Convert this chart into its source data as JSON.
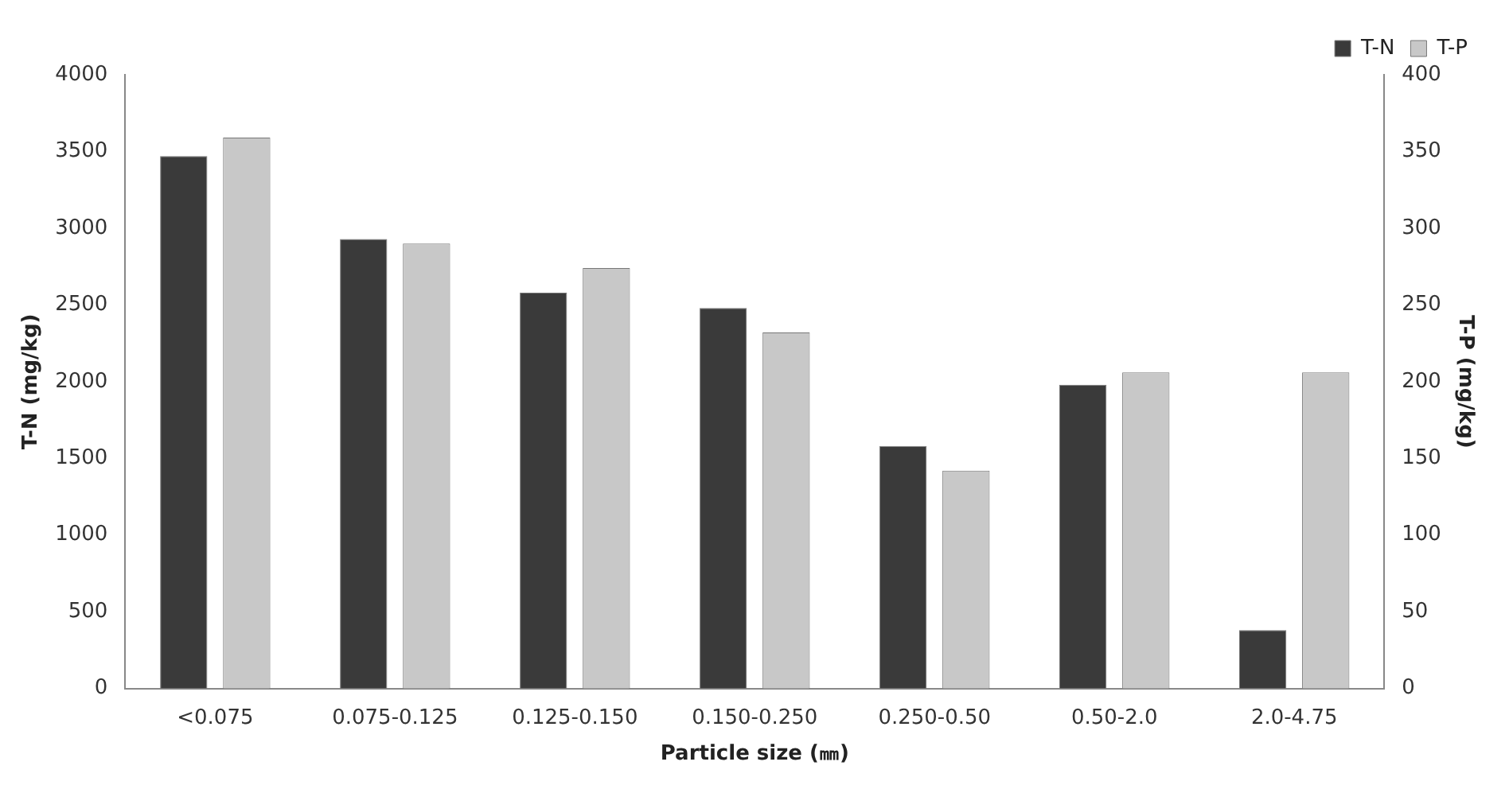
{
  "chart_data": {
    "type": "bar",
    "xlabel": "Particle size (㎜)",
    "ylabel": "T-N (mg/kg)",
    "y2label": "T-P (mg/kg)",
    "categories": [
      "<0.075",
      "0.075-0.125",
      "0.125-0.150",
      "0.150-0.250",
      "0.250-0.50",
      "0.50-2.0",
      "2.0-4.75"
    ],
    "series": [
      {
        "name": "T-N",
        "color": "#3a3a3a",
        "values": [
          3470,
          2930,
          2580,
          2480,
          1580,
          1980,
          380
        ]
      },
      {
        "name": "T-P",
        "color": "#c8c8c8",
        "axis": "y2",
        "values": [
          359,
          290,
          274,
          232,
          142,
          206,
          206
        ]
      }
    ],
    "ylim": [
      0,
      4000
    ],
    "yticks": [
      0,
      500,
      1000,
      1500,
      2000,
      2500,
      3000,
      3500,
      4000
    ],
    "y2lim": [
      0,
      400
    ],
    "y2ticks": [
      0,
      50,
      100,
      150,
      200,
      250,
      300,
      350,
      400
    ],
    "grid": false,
    "legend": "top right"
  }
}
